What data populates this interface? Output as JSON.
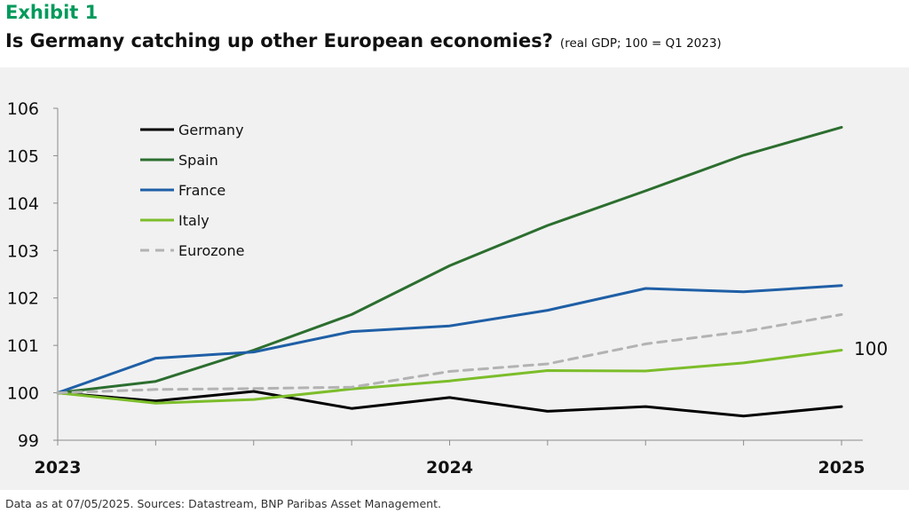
{
  "header": {
    "exhibit": "Exhibit 1",
    "title": "Is Germany catching up other European economies?",
    "subtitle": "(real GDP; 100 = Q1 2023)"
  },
  "footer": {
    "source": "Data as at 07/05/2025. Sources: Datastream, BNP Paribas Asset Management."
  },
  "chart_data": {
    "type": "line",
    "title": "Is Germany catching up other European economies?",
    "subtitle": "(real GDP; 100 = Q1 2023)",
    "xlabel": "",
    "ylabel": "",
    "x_tick_labels": [
      "2023",
      "2024",
      "2025"
    ],
    "x": [
      "Q1 2023",
      "Q2 2023",
      "Q3 2023",
      "Q4 2023",
      "Q1 2024",
      "Q2 2024",
      "Q3 2024",
      "Q4 2024",
      "Q1 2025"
    ],
    "ylim": [
      99,
      106
    ],
    "yticks": [
      99,
      100,
      101,
      102,
      103,
      104,
      105,
      106
    ],
    "grid": false,
    "legend_position": "top-left",
    "annotation": "100",
    "series": [
      {
        "name": "Germany",
        "color": "#000000",
        "dashed": false,
        "values": [
          100.0,
          99.83,
          100.03,
          99.67,
          99.9,
          99.61,
          99.71,
          99.51,
          99.71
        ]
      },
      {
        "name": "Spain",
        "color": "#2c6e2f",
        "dashed": false,
        "values": [
          100.0,
          100.24,
          100.9,
          101.65,
          102.68,
          103.53,
          104.26,
          105.01,
          105.6
        ]
      },
      {
        "name": "France",
        "color": "#1f5fa6",
        "dashed": false,
        "values": [
          100.0,
          100.73,
          100.86,
          101.29,
          101.41,
          101.74,
          102.2,
          102.13,
          102.26
        ]
      },
      {
        "name": "Italy",
        "color": "#7cbd2a",
        "dashed": false,
        "values": [
          100.0,
          99.78,
          99.86,
          100.08,
          100.25,
          100.47,
          100.46,
          100.63,
          100.9
        ]
      },
      {
        "name": "Eurozone",
        "color": "#b3b3b3",
        "dashed": true,
        "values": [
          100.0,
          100.07,
          100.09,
          100.12,
          100.45,
          100.61,
          101.03,
          101.29,
          101.65
        ]
      }
    ]
  }
}
